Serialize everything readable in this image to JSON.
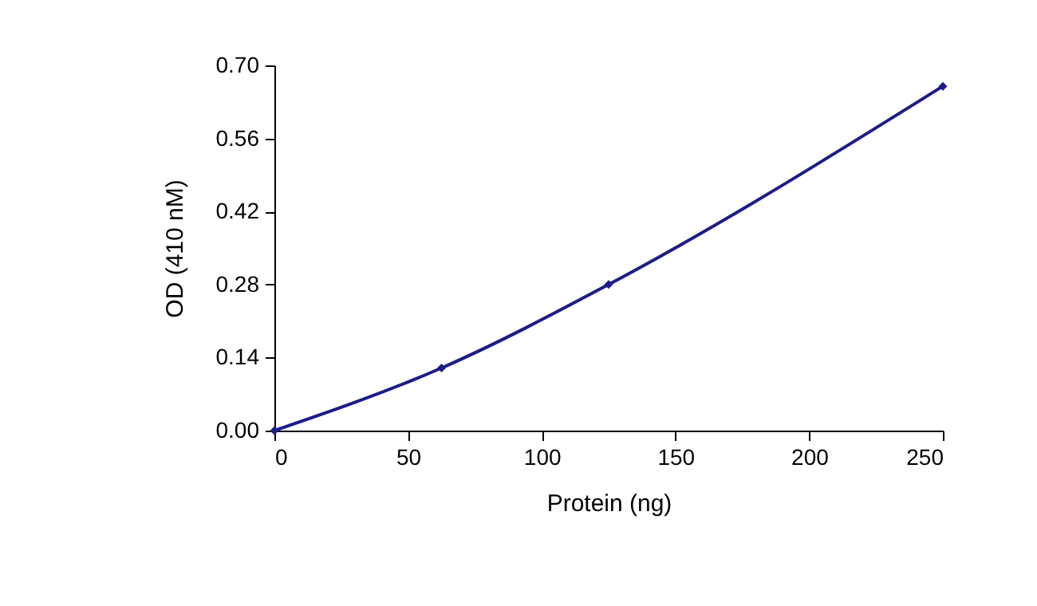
{
  "chart_data": {
    "type": "line",
    "xlabel": "Protein (ng)",
    "ylabel": "OD (410 nM)",
    "x": [
      0,
      62.5,
      125,
      250
    ],
    "series": [
      {
        "color": "#1c1c8a",
        "values": [
          0,
          0.12,
          0.28,
          0.66
        ]
      }
    ],
    "xlim": [
      0,
      250
    ],
    "xticks": [
      0,
      50,
      100,
      150,
      200,
      250
    ],
    "ylim": [
      0,
      0.7
    ],
    "yticks": [
      {
        "value": 0,
        "label": "0.00"
      },
      {
        "value": 0.14,
        "label": "0.14"
      },
      {
        "value": 0.28,
        "label": "0.28"
      },
      {
        "value": 0.42,
        "label": "0.42"
      },
      {
        "value": 0.56,
        "label": "0.56"
      },
      {
        "value": 0.7,
        "label": "0.70"
      }
    ],
    "marker": "diamond",
    "line_style": "solid"
  }
}
